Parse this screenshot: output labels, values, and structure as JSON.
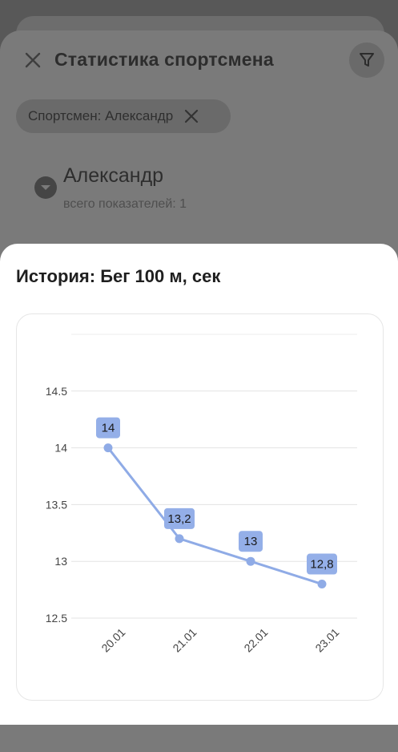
{
  "sheet": {
    "title": "Статистика спортсмена",
    "close_icon": "close-icon",
    "filter_icon": "filter-icon"
  },
  "filter_chip": {
    "label": "Спортсмен: Александр",
    "remove_icon": "close-icon"
  },
  "athlete": {
    "name": "Александр",
    "subtitle": "всего показателей: 1",
    "toggle_icon": "chevron-down-icon"
  },
  "history": {
    "title": "История: Бег 100 м,  сек"
  },
  "colors": {
    "series": "#8fabe6",
    "label_bg": "#94afe8",
    "grid": "#e3e3e3"
  },
  "chart_data": {
    "type": "line",
    "x": [
      "20.01",
      "21.01",
      "22.01",
      "23.01"
    ],
    "values": [
      14,
      13.2,
      13,
      12.8
    ],
    "data_labels": [
      "14",
      "13,2",
      "13",
      "12,8"
    ],
    "y_ticks": [
      "12.5",
      "13",
      "13.5",
      "14",
      "14.5"
    ],
    "ylim": [
      12.5,
      15
    ],
    "grid": true,
    "legend": "none"
  }
}
